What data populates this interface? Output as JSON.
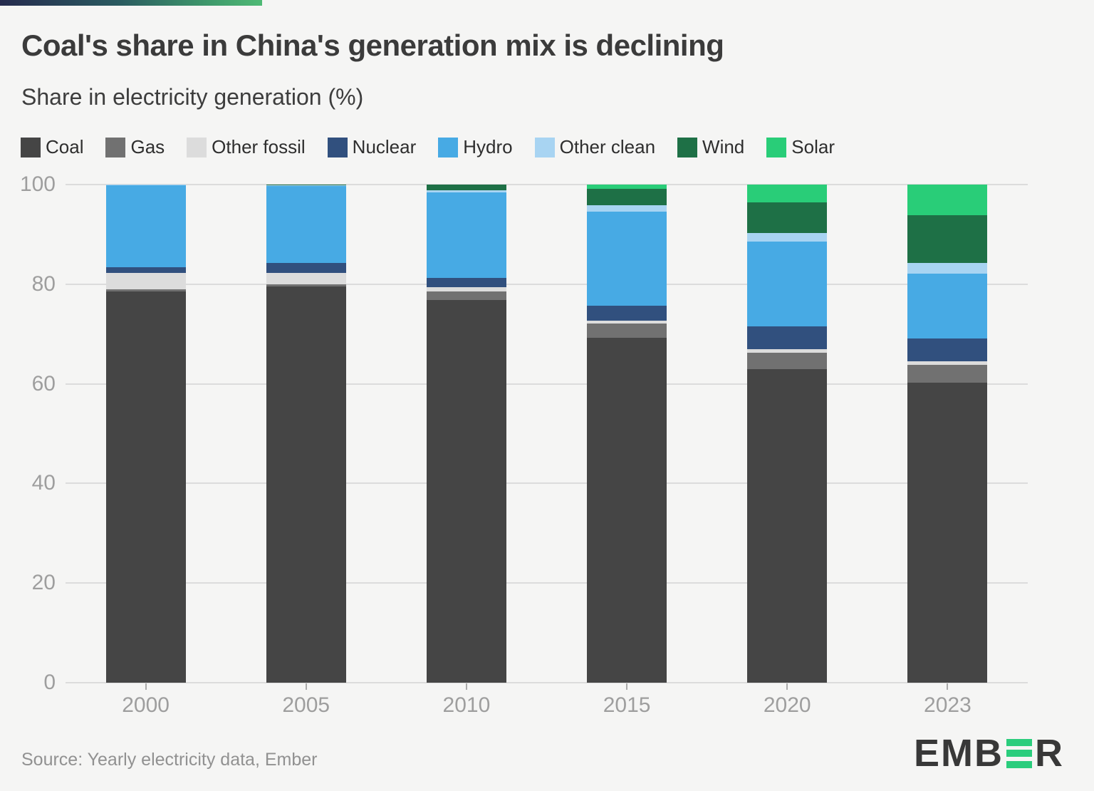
{
  "header": {
    "title": "Coal's share in China's generation mix is declining",
    "subtitle": "Share in electricity generation (%)"
  },
  "footer": {
    "source": "Source: Yearly electricity data, Ember",
    "logo_left": "EMB",
    "logo_right": "R"
  },
  "colors": {
    "background": "#f5f5f4",
    "grid": "#dcdcdc",
    "axis_text": "#9e9e9e",
    "title_text": "#3b3b3b",
    "source_text": "#919191",
    "logo_dark": "#383838",
    "logo_green": "#2bcd7d",
    "brand_gradient_start": "#262b4e",
    "brand_gradient_end": "#4fba75"
  },
  "chart_data": {
    "type": "bar",
    "stacked": true,
    "title": "Coal's share in China's generation mix is declining",
    "subtitle": "Share in electricity generation (%)",
    "xlabel": "",
    "ylabel": "Share in electricity generation (%)",
    "ylim": [
      0,
      100
    ],
    "yticks": [
      0,
      20,
      40,
      60,
      80,
      100
    ],
    "grid": true,
    "legend_position": "top",
    "categories": [
      "2000",
      "2005",
      "2010",
      "2015",
      "2020",
      "2023"
    ],
    "series": [
      {
        "name": "Coal",
        "color": "#454545",
        "values": [
          78.5,
          79.5,
          76.8,
          69.3,
          63.0,
          60.3
        ]
      },
      {
        "name": "Gas",
        "color": "#717171",
        "values": [
          0.5,
          0.5,
          1.8,
          2.8,
          3.2,
          3.5
        ]
      },
      {
        "name": "Other fossil",
        "color": "#dcdcdc",
        "values": [
          3.2,
          2.2,
          0.8,
          0.6,
          0.8,
          0.7
        ]
      },
      {
        "name": "Nuclear",
        "color": "#31507e",
        "values": [
          1.2,
          2.0,
          1.8,
          3.0,
          4.6,
          4.6
        ]
      },
      {
        "name": "Hydro",
        "color": "#47aae4",
        "values": [
          16.4,
          15.5,
          17.2,
          18.9,
          16.9,
          13.0
        ]
      },
      {
        "name": "Other clean",
        "color": "#a8d4f2",
        "values": [
          0.2,
          0.2,
          0.5,
          1.3,
          1.8,
          2.2
        ]
      },
      {
        "name": "Wind",
        "color": "#1e7046",
        "values": [
          0.0,
          0.1,
          1.1,
          3.3,
          6.2,
          9.5
        ]
      },
      {
        "name": "Solar",
        "color": "#29cd78",
        "values": [
          0.0,
          0.0,
          0.0,
          0.8,
          3.5,
          6.2
        ]
      }
    ]
  }
}
